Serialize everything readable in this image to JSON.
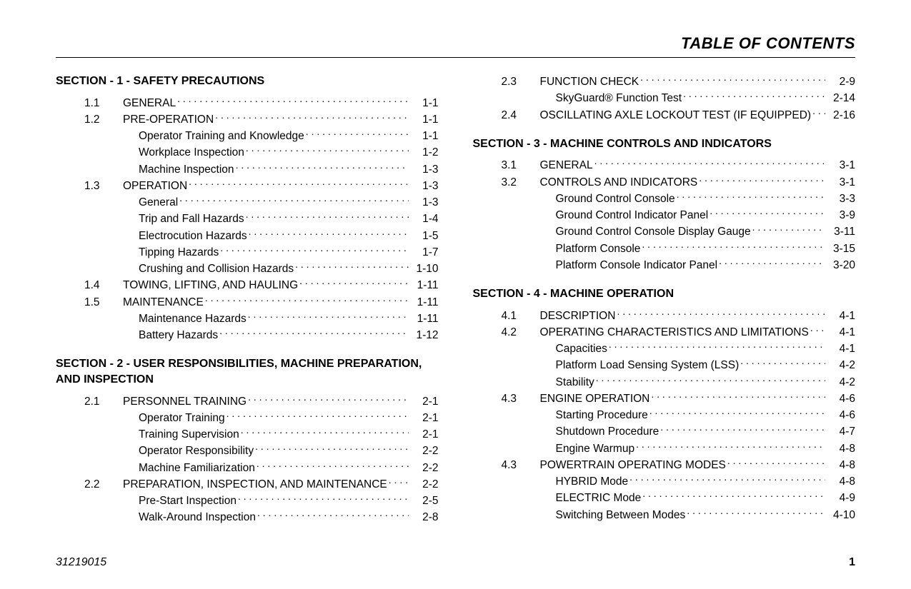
{
  "header": "TABLE OF CONTENTS",
  "footer": {
    "doc_id": "31219015",
    "page_num": "1"
  },
  "columns": [
    [
      {
        "type": "section",
        "text": "SECTION - 1 - SAFETY PRECAUTIONS"
      },
      {
        "type": "entry",
        "num": "1.1",
        "label": "GENERAL",
        "page": "1-1"
      },
      {
        "type": "entry",
        "num": "1.2",
        "label": "PRE-OPERATION",
        "page": "1-1"
      },
      {
        "type": "sub",
        "label": "Operator Training and Knowledge",
        "page": "1-1"
      },
      {
        "type": "sub",
        "label": "Workplace Inspection",
        "page": "1-2"
      },
      {
        "type": "sub",
        "label": "Machine Inspection",
        "page": "1-3"
      },
      {
        "type": "entry",
        "num": "1.3",
        "label": "OPERATION",
        "page": "1-3"
      },
      {
        "type": "sub",
        "label": "General",
        "page": "1-3"
      },
      {
        "type": "sub",
        "label": "Trip and Fall Hazards",
        "page": "1-4"
      },
      {
        "type": "sub",
        "label": "Electrocution Hazards",
        "page": "1-5"
      },
      {
        "type": "sub",
        "label": "Tipping Hazards",
        "page": "1-7"
      },
      {
        "type": "sub",
        "label": "Crushing and Collision Hazards",
        "page": "1-10"
      },
      {
        "type": "entry",
        "num": "1.4",
        "label": "TOWING, LIFTING, AND HAULING",
        "page": "1-11"
      },
      {
        "type": "entry",
        "num": "1.5",
        "label": "MAINTENANCE",
        "page": "1-11"
      },
      {
        "type": "sub",
        "label": "Maintenance Hazards",
        "page": "1-11"
      },
      {
        "type": "sub",
        "label": "Battery Hazards",
        "page": "1-12"
      },
      {
        "type": "section",
        "text": "SECTION - 2 -  USER RESPONSIBILITIES, MACHINE PREPARATION, AND INSPECTION"
      },
      {
        "type": "entry",
        "num": "2.1",
        "label": "PERSONNEL TRAINING",
        "page": "2-1"
      },
      {
        "type": "sub",
        "label": "Operator Training",
        "page": "2-1"
      },
      {
        "type": "sub",
        "label": "Training Supervision",
        "page": "2-1"
      },
      {
        "type": "sub",
        "label": "Operator Responsibility",
        "page": "2-2"
      },
      {
        "type": "sub",
        "label": "Machine Familiarization",
        "page": "2-2"
      },
      {
        "type": "entry",
        "num": "2.2",
        "label": "PREPARATION, INSPECTION, AND MAINTENANCE",
        "page": "2-2"
      },
      {
        "type": "sub",
        "label": "Pre-Start Inspection",
        "page": "2-5"
      },
      {
        "type": "sub",
        "label": "Walk-Around Inspection",
        "page": "2-8"
      }
    ],
    [
      {
        "type": "entry",
        "num": "2.3",
        "label": "FUNCTION CHECK",
        "page": "2-9"
      },
      {
        "type": "sub",
        "label": "SkyGuard® Function Test",
        "page": "2-14"
      },
      {
        "type": "entry",
        "num": "2.4",
        "label": "OSCILLATING AXLE LOCKOUT TEST (IF EQUIPPED)",
        "page": "2-16"
      },
      {
        "type": "section",
        "text": "SECTION - 3 - MACHINE CONTROLS AND INDICATORS"
      },
      {
        "type": "entry",
        "num": "3.1",
        "label": "GENERAL",
        "page": "3-1"
      },
      {
        "type": "entry",
        "num": "3.2",
        "label": "CONTROLS AND INDICATORS",
        "page": "3-1"
      },
      {
        "type": "sub",
        "label": "Ground Control Console",
        "page": "3-3"
      },
      {
        "type": "sub",
        "label": "Ground Control Indicator Panel",
        "page": "3-9"
      },
      {
        "type": "sub",
        "label": "Ground Control Console Display Gauge",
        "page": "3-11"
      },
      {
        "type": "sub",
        "label": "Platform Console",
        "page": "3-15"
      },
      {
        "type": "sub",
        "label": "Platform Console Indicator Panel",
        "page": "3-20"
      },
      {
        "type": "section",
        "text": "SECTION - 4 - MACHINE OPERATION"
      },
      {
        "type": "entry",
        "num": "4.1",
        "label": "DESCRIPTION",
        "page": "4-1"
      },
      {
        "type": "entry",
        "num": "4.2",
        "label": "OPERATING CHARACTERISTICS AND LIMITATIONS",
        "page": "4-1"
      },
      {
        "type": "sub",
        "label": "Capacities",
        "page": "4-1"
      },
      {
        "type": "sub",
        "label": "Platform Load Sensing System (LSS)",
        "page": "4-2"
      },
      {
        "type": "sub",
        "label": "Stability",
        "page": "4-2"
      },
      {
        "type": "entry",
        "num": "4.3",
        "label": "ENGINE OPERATION",
        "page": "4-6"
      },
      {
        "type": "sub",
        "label": "Starting Procedure",
        "page": "4-6"
      },
      {
        "type": "sub",
        "label": "Shutdown Procedure",
        "page": "4-7"
      },
      {
        "type": "sub",
        "label": "Engine Warmup",
        "page": "4-8"
      },
      {
        "type": "entry",
        "num": "4.3",
        "label": "POWERTRAIN OPERATING MODES",
        "page": "4-8"
      },
      {
        "type": "sub",
        "label": "HYBRID Mode",
        "page": "4-8"
      },
      {
        "type": "sub",
        "label": "ELECTRIC Mode",
        "page": "4-9"
      },
      {
        "type": "sub",
        "label": "Switching Between Modes",
        "page": "4-10"
      }
    ]
  ]
}
